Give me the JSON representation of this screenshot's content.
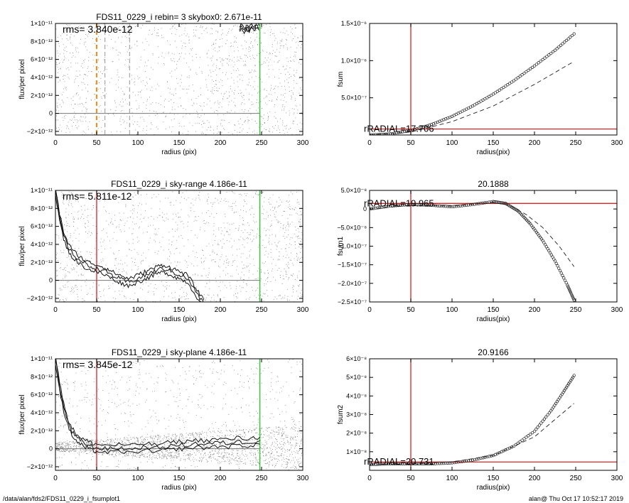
{
  "chart_data": [
    {
      "type": "scatter",
      "panel": "left-1",
      "title": "FDS11_0229_i rebin= 3    skybox0:  2.671e-11",
      "annotation": "rms= 3.840e-12",
      "xlabel": "radius (pix)",
      "ylabel": "flux/per pixel",
      "xlim": [
        0,
        300
      ],
      "ylim": [
        -2.4e-12,
        1e-11
      ],
      "xticks": [
        "0",
        "50",
        "100",
        "150",
        "200",
        "250",
        "300"
      ],
      "yticks": [
        {
          "value": -2e-12,
          "label": "−2×10⁻¹²"
        },
        {
          "value": 0,
          "label": "0"
        },
        {
          "value": 2e-12,
          "label": "2×10⁻¹²"
        },
        {
          "value": 4e-12,
          "label": "4×10⁻¹²"
        },
        {
          "value": 6e-12,
          "label": "6×10⁻¹²"
        },
        {
          "value": 8e-12,
          "label": "8×10⁻¹²"
        },
        {
          "value": 1e-11,
          "label": "1×10⁻¹¹"
        }
      ],
      "scatter_density": "sparse",
      "vlines": [
        {
          "x": 50,
          "color": "#ff8c1a",
          "style": "dashed"
        },
        {
          "x": 60,
          "color": "#aaaaaa",
          "style": "dashed"
        },
        {
          "x": 90,
          "color": "#aaaaaa",
          "style": "dashed"
        },
        {
          "x": 248,
          "color": "#22cc22",
          "style": "solid"
        }
      ],
      "hlines": [
        {
          "y": 0,
          "color": "#777777"
        }
      ],
      "profile": {
        "x": [
          223,
          226,
          229,
          232,
          235,
          238,
          241,
          244,
          247
        ],
        "y": [
          9.4e-12,
          9.7e-12,
          9.2e-12,
          9.6e-12,
          9.3e-12,
          9.7e-12,
          9.4e-12,
          9.8e-12,
          9.5e-12
        ]
      }
    },
    {
      "type": "line",
      "panel": "right-1",
      "title": "",
      "annotation": "rRADIAL=17.706",
      "xlabel": "radius(pix)",
      "ylabel": "fsum",
      "xlim": [
        0,
        300
      ],
      "ylim": [
        0,
        1.5e-06
      ],
      "xticks": [
        "0",
        "50",
        "100",
        "150",
        "200",
        "250",
        "300"
      ],
      "yticks": [
        {
          "value": 5e-07,
          "label": "5.0×10⁻⁷"
        },
        {
          "value": 1e-06,
          "label": "1.0×10⁻⁶"
        },
        {
          "value": 1.5e-06,
          "label": "1.5×10⁻⁶"
        }
      ],
      "red_vline": 50,
      "red_hline": 8e-08,
      "series": [
        {
          "style": "circles",
          "x": [
            0,
            25,
            50,
            75,
            100,
            125,
            150,
            175,
            200,
            225,
            248
          ],
          "y": [
            0,
            1.5e-08,
            6e-08,
            1.4e-07,
            2.5e-07,
            3.9e-07,
            5.5e-07,
            7.3e-07,
            9.3e-07,
            1.14e-06,
            1.36e-06
          ]
        },
        {
          "style": "dashed",
          "x": [
            0,
            50,
            100,
            150,
            200,
            248
          ],
          "y": [
            0,
            4e-08,
            1.8e-07,
            3.9e-07,
            6.8e-07,
            9.9e-07
          ]
        }
      ]
    },
    {
      "type": "scatter",
      "panel": "left-2",
      "title": "FDS11_0229_i sky-range  4.186e-11",
      "annotation": "rms= 5.811e-12",
      "xlabel": "radius (pix)",
      "ylabel": "flux/per pixel",
      "xlim": [
        0,
        300
      ],
      "ylim": [
        -2.4e-12,
        1e-11
      ],
      "xticks": [
        "0",
        "50",
        "100",
        "150",
        "200",
        "250",
        "300"
      ],
      "yticks": [
        {
          "value": -2e-12,
          "label": "−2×10⁻¹²"
        },
        {
          "value": 0,
          "label": "0"
        },
        {
          "value": 2e-12,
          "label": "2×10⁻¹²"
        },
        {
          "value": 4e-12,
          "label": "4×10⁻¹²"
        },
        {
          "value": 6e-12,
          "label": "6×10⁻¹²"
        },
        {
          "value": 8e-12,
          "label": "8×10⁻¹²"
        },
        {
          "value": 1e-11,
          "label": "1×10⁻¹¹"
        }
      ],
      "scatter_density": "sparse",
      "vlines": [
        {
          "x": 50,
          "color": "#dd2222",
          "style": "solid"
        },
        {
          "x": 248,
          "color": "#22cc22",
          "style": "solid"
        }
      ],
      "hlines": [
        {
          "y": 0,
          "color": "#777777"
        }
      ],
      "profile": {
        "x": [
          0,
          5,
          10,
          15,
          20,
          25,
          30,
          35,
          40,
          45,
          50,
          55,
          60,
          65,
          70,
          75,
          80,
          85,
          90,
          95,
          100,
          105,
          110,
          115,
          120,
          125,
          130,
          135,
          140,
          145,
          150,
          155,
          160,
          165,
          170,
          175,
          180
        ],
        "y": [
          1e-11,
          7e-12,
          5e-12,
          3.8e-12,
          3e-12,
          2.6e-12,
          2.2e-12,
          1.9e-12,
          1.6e-12,
          1.5e-12,
          1.3e-12,
          1.2e-12,
          1e-12,
          8e-13,
          5e-13,
          3e-13,
          1e-13,
          -1e-13,
          -2e-13,
          0,
          2e-13,
          4e-13,
          6e-13,
          8e-13,
          1e-12,
          1.2e-12,
          1.3e-12,
          1.2e-12,
          1e-12,
          8e-13,
          6e-13,
          4e-13,
          2e-13,
          -5e-13,
          -1.2e-12,
          -2e-12,
          -2.6e-12
        ]
      },
      "profile_spread": 4e-13
    },
    {
      "type": "line",
      "panel": "right-2",
      "title": "20.1888",
      "annotation": "rRADIAL=19.965",
      "xlabel": "radius(pix)",
      "ylabel": "fsum1",
      "xlim": [
        0,
        300
      ],
      "ylim": [
        -2.5e-07,
        5e-08
      ],
      "xticks": [
        "0",
        "50",
        "100",
        "150",
        "200",
        "250",
        "300"
      ],
      "yticks": [
        {
          "value": -2.5e-07,
          "label": "−2.5×10⁻⁷"
        },
        {
          "value": -2e-07,
          "label": "−2.0×10⁻⁷"
        },
        {
          "value": -1.5e-07,
          "label": "−1.5×10⁻⁷"
        },
        {
          "value": -1e-07,
          "label": "−1.0×10⁻⁷"
        },
        {
          "value": -5e-08,
          "label": "−5.0×10⁻⁸"
        },
        {
          "value": 0,
          "label": "0"
        },
        {
          "value": 5e-08,
          "label": "5.0×10⁻⁸"
        }
      ],
      "red_vline": 50,
      "red_hline": 1.5e-08,
      "series": [
        {
          "style": "circles",
          "x": [
            0,
            25,
            50,
            75,
            100,
            125,
            150,
            165,
            180,
            195,
            210,
            225,
            240,
            248
          ],
          "y": [
            0,
            8e-09,
            1.2e-08,
            1e-08,
            6e-09,
            1.2e-08,
            2e-08,
            1.5e-08,
            -5e-09,
            -4e-08,
            -8.5e-08,
            -1.4e-07,
            -2.05e-07,
            -2.45e-07
          ]
        },
        {
          "style": "dashed",
          "x": [
            0,
            50,
            100,
            150,
            170,
            190,
            210,
            230,
            248
          ],
          "y": [
            0,
            1e-08,
            8e-09,
            1.8e-08,
            1e-08,
            -1.5e-08,
            -5e-08,
            -1e-07,
            -1.55e-07
          ]
        }
      ]
    },
    {
      "type": "scatter",
      "panel": "left-3",
      "title": "FDS11_0229_i sky-plane  4.186e-11",
      "annotation": "rms= 3.845e-12",
      "xlabel": "radius (pix)",
      "ylabel": "flux/per pixel",
      "xlim": [
        0,
        300
      ],
      "ylim": [
        -2.4e-12,
        1e-11
      ],
      "xticks": [
        "0",
        "50",
        "100",
        "150",
        "200",
        "250",
        "300"
      ],
      "yticks": [
        {
          "value": -2e-12,
          "label": "−2×10⁻¹²"
        },
        {
          "value": 0,
          "label": "0"
        },
        {
          "value": 2e-12,
          "label": "2×10⁻¹²"
        },
        {
          "value": 4e-12,
          "label": "4×10⁻¹²"
        },
        {
          "value": 6e-12,
          "label": "6×10⁻¹²"
        },
        {
          "value": 8e-12,
          "label": "8×10⁻¹²"
        },
        {
          "value": 1e-11,
          "label": "1×10⁻¹¹"
        }
      ],
      "scatter_density": "dense",
      "vlines": [
        {
          "x": 50,
          "color": "#dd2222",
          "style": "solid"
        },
        {
          "x": 248,
          "color": "#22cc22",
          "style": "solid"
        }
      ],
      "hlines": [
        {
          "y": 0,
          "color": "#777777"
        }
      ],
      "profile": {
        "x": [
          0,
          5,
          10,
          15,
          20,
          25,
          30,
          35,
          40,
          45,
          50,
          60,
          70,
          80,
          90,
          100,
          110,
          120,
          130,
          140,
          150,
          160,
          170,
          180,
          190,
          200,
          210,
          220,
          230,
          240,
          248
        ],
        "y": [
          1e-11,
          7e-12,
          4.6e-12,
          3e-12,
          1.9e-12,
          1.3e-12,
          9e-13,
          6e-13,
          4e-13,
          2e-13,
          1e-13,
          0,
          0,
          1e-13,
          -1e-13,
          1e-13,
          2e-13,
          0,
          2e-13,
          3e-13,
          4e-13,
          4e-13,
          6e-13,
          5e-13,
          6e-13,
          7e-13,
          6e-13,
          8e-13,
          7e-13,
          8e-13,
          9e-13
        ]
      },
      "profile_spread": 4e-13
    },
    {
      "type": "line",
      "panel": "right-3",
      "title": "20.9166",
      "annotation": "rRADIAL=20.731",
      "xlabel": "radius(pix)",
      "ylabel": "fsum2",
      "xlim": [
        0,
        300
      ],
      "ylim": [
        0,
        6e-08
      ],
      "xticks": [
        "0",
        "50",
        "100",
        "150",
        "200",
        "250",
        "300"
      ],
      "yticks": [
        {
          "value": 1e-08,
          "label": "1×10⁻⁸"
        },
        {
          "value": 2e-08,
          "label": "2×10⁻⁸"
        },
        {
          "value": 3e-08,
          "label": "3×10⁻⁸"
        },
        {
          "value": 4e-08,
          "label": "4×10⁻⁸"
        },
        {
          "value": 5e-08,
          "label": "5×10⁻⁸"
        },
        {
          "value": 6e-08,
          "label": "6×10⁻⁸"
        }
      ],
      "red_vline": 50,
      "red_hline": 4.5e-09,
      "series": [
        {
          "style": "circles",
          "x": [
            0,
            25,
            50,
            75,
            100,
            125,
            150,
            175,
            200,
            220,
            235,
            248
          ],
          "y": [
            3e-09,
            3.5e-09,
            3.5e-09,
            3.5e-09,
            4e-09,
            5.5e-09,
            8e-09,
            1.3e-08,
            2.1e-08,
            3.2e-08,
            4.2e-08,
            5.1e-08
          ]
        },
        {
          "style": "dashed",
          "x": [
            0,
            50,
            100,
            150,
            200,
            248
          ],
          "y": [
            3e-09,
            3.5e-09,
            4.5e-09,
            8e-09,
            1.8e-08,
            3.6e-08
          ]
        }
      ]
    }
  ],
  "footer": {
    "left": "/data/alan/fds2/FDS11_0229_i_fsumplot1",
    "right": "alan@  Thu Oct 17 10:52:17 2019"
  }
}
